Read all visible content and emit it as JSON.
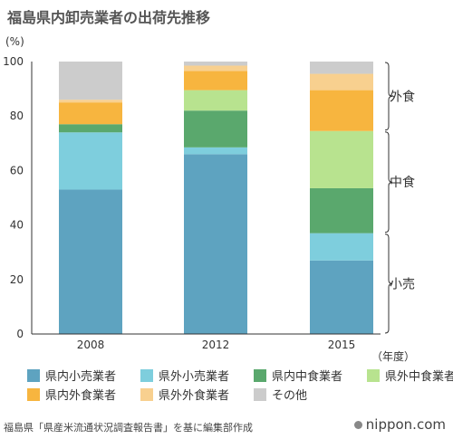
{
  "title": "福島県内卸売業者の出荷先推移",
  "source": "福島県「県産米流通状況調査報告書」を基に編集部作成",
  "brand": "nippon.com",
  "chart_data": {
    "type": "stacked-bar",
    "y_unit_label": "(%)",
    "x_unit_label": "（年度）",
    "ylim": [
      0,
      100
    ],
    "yticks": [
      0,
      20,
      40,
      60,
      80,
      100
    ],
    "grid": false,
    "legend_position": "bottom",
    "categories": [
      "2008",
      "2012",
      "2015"
    ],
    "series": [
      {
        "name": "県内小売業者",
        "color": "#5ea3c0",
        "values": [
          53,
          66,
          27
        ]
      },
      {
        "name": "県外小売業者",
        "color": "#7ecedd",
        "values": [
          21,
          2.5,
          10
        ]
      },
      {
        "name": "県内中食業者",
        "color": "#5aa86d",
        "values": [
          3,
          13.5,
          16.5
        ]
      },
      {
        "name": "県外中食業者",
        "color": "#b8e38f",
        "values": [
          0,
          7.5,
          21
        ]
      },
      {
        "name": "県内外食業者",
        "color": "#f7b53f",
        "values": [
          8,
          7,
          15
        ]
      },
      {
        "name": "県外外食業者",
        "color": "#f8d08f",
        "values": [
          1,
          2,
          6
        ]
      },
      {
        "name": "その他",
        "color": "#cccccc",
        "values": [
          14,
          1.5,
          4.5
        ]
      }
    ],
    "annotations": [
      {
        "label": "外食",
        "from": 74.5,
        "to": 100
      },
      {
        "label": "中食",
        "from": 37,
        "to": 74.5
      },
      {
        "label": "小売",
        "from": 0,
        "to": 37
      }
    ]
  },
  "colors": {
    "axis": "#333333",
    "bracket": "#333333"
  }
}
